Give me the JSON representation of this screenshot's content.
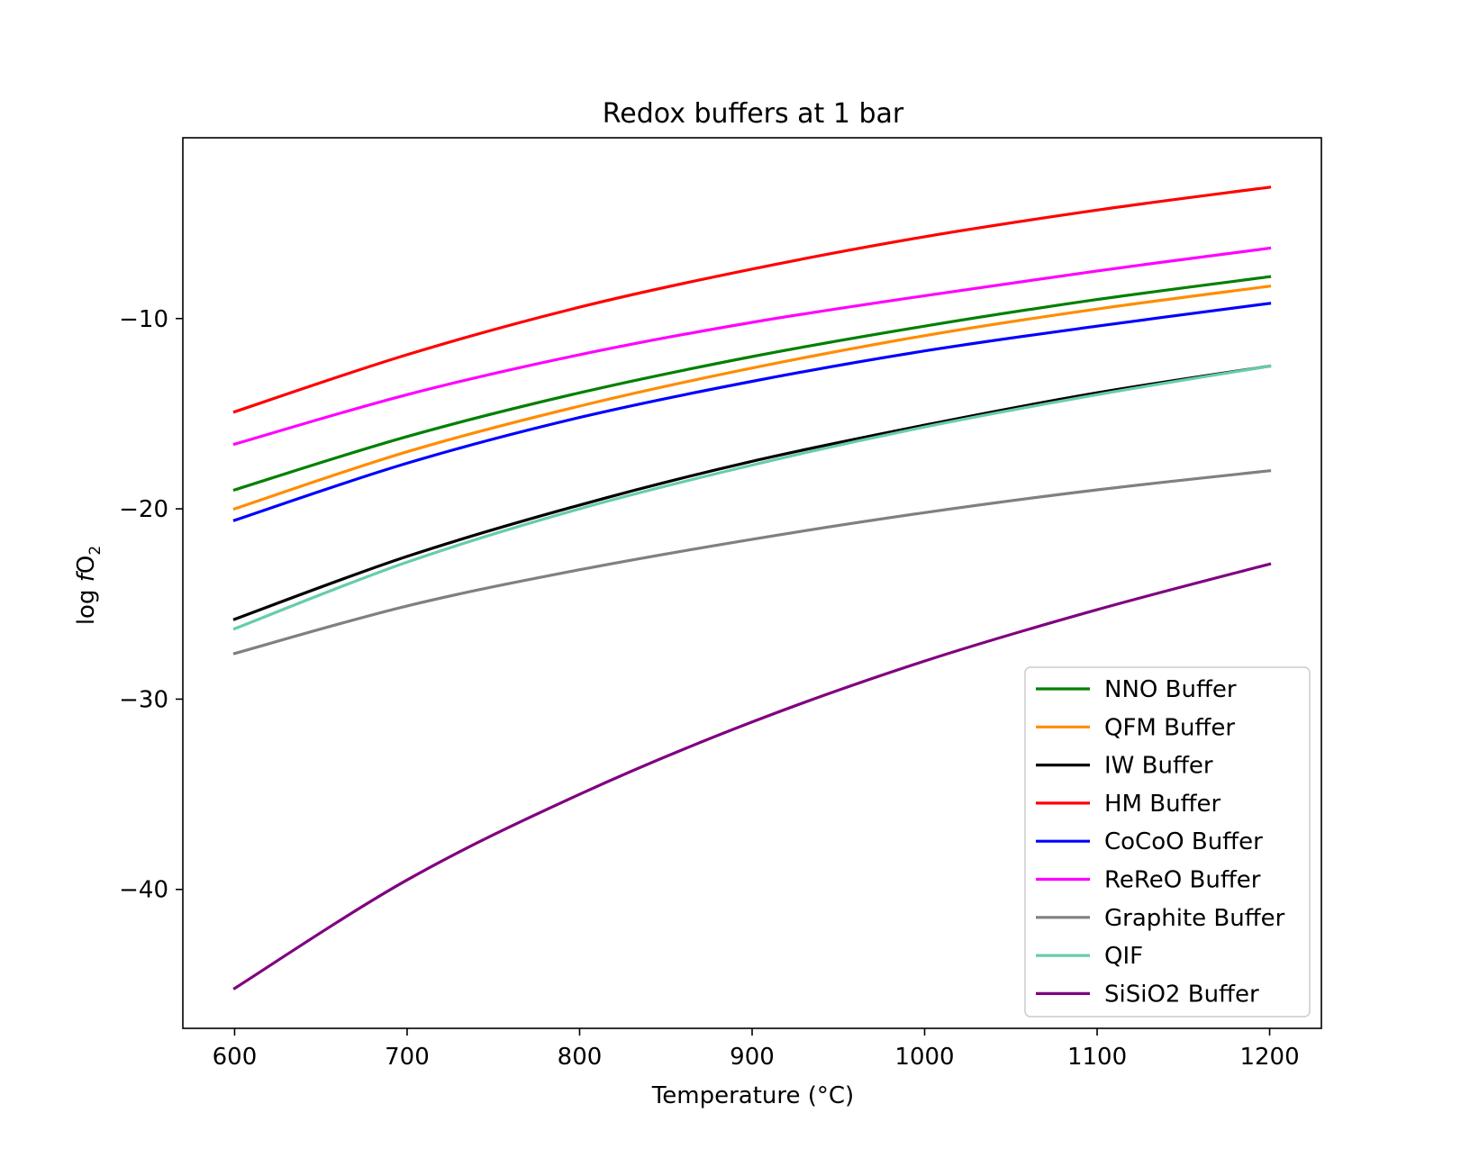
{
  "chart_data": {
    "type": "line",
    "title": "Redox buffers at 1 bar",
    "xlabel": "Temperature (°C)",
    "ylabel_main": "log ",
    "ylabel_italic": "f",
    "ylabel_species": "O",
    "ylabel_subscript": "2",
    "xlim": [
      570,
      1230
    ],
    "ylim": [
      -47.3,
      -0.5
    ],
    "xticks": [
      600,
      700,
      800,
      900,
      1000,
      1100,
      1200
    ],
    "xtick_labels": [
      "600",
      "700",
      "800",
      "900",
      "1000",
      "1100",
      "1200"
    ],
    "yticks": [
      -40,
      -30,
      -20,
      -10
    ],
    "ytick_labels": [
      "−40",
      "−30",
      "−20",
      "−10"
    ],
    "grid": false,
    "legend_position": "lower-right",
    "x": [
      600,
      700,
      800,
      900,
      1000,
      1100,
      1200
    ],
    "series": [
      {
        "name": "NNO Buffer",
        "color": "#008000",
        "values": [
          -19.0,
          -16.2,
          -13.9,
          -12.0,
          -10.4,
          -9.0,
          -7.8
        ]
      },
      {
        "name": "QFM Buffer",
        "color": "#ff8c00",
        "values": [
          -20.0,
          -17.0,
          -14.6,
          -12.6,
          -10.9,
          -9.5,
          -8.3
        ]
      },
      {
        "name": "IW Buffer",
        "color": "#000000",
        "values": [
          -25.8,
          -22.5,
          -19.8,
          -17.5,
          -15.6,
          -13.9,
          -12.5
        ]
      },
      {
        "name": "HM Buffer",
        "color": "#ff0000",
        "values": [
          -14.9,
          -11.9,
          -9.4,
          -7.4,
          -5.7,
          -4.3,
          -3.1
        ]
      },
      {
        "name": "CoCoO Buffer",
        "color": "#0000ff",
        "values": [
          -20.6,
          -17.6,
          -15.2,
          -13.3,
          -11.7,
          -10.4,
          -9.2
        ]
      },
      {
        "name": "ReReO Buffer",
        "color": "#ff00ff",
        "values": [
          -16.6,
          -14.0,
          -11.9,
          -10.2,
          -8.8,
          -7.5,
          -6.3
        ]
      },
      {
        "name": "Graphite Buffer",
        "color": "#808080",
        "values": [
          -27.6,
          -25.1,
          -23.2,
          -21.6,
          -20.2,
          -19.0,
          -18.0
        ]
      },
      {
        "name": "QIF",
        "color": "#66cdaa",
        "values": [
          -26.3,
          -22.8,
          -20.0,
          -17.7,
          -15.7,
          -14.0,
          -12.5
        ]
      },
      {
        "name": "SiSiO2 Buffer",
        "color": "#800080",
        "values": [
          -45.2,
          -39.5,
          -35.0,
          -31.2,
          -28.0,
          -25.3,
          -22.9
        ]
      }
    ]
  }
}
